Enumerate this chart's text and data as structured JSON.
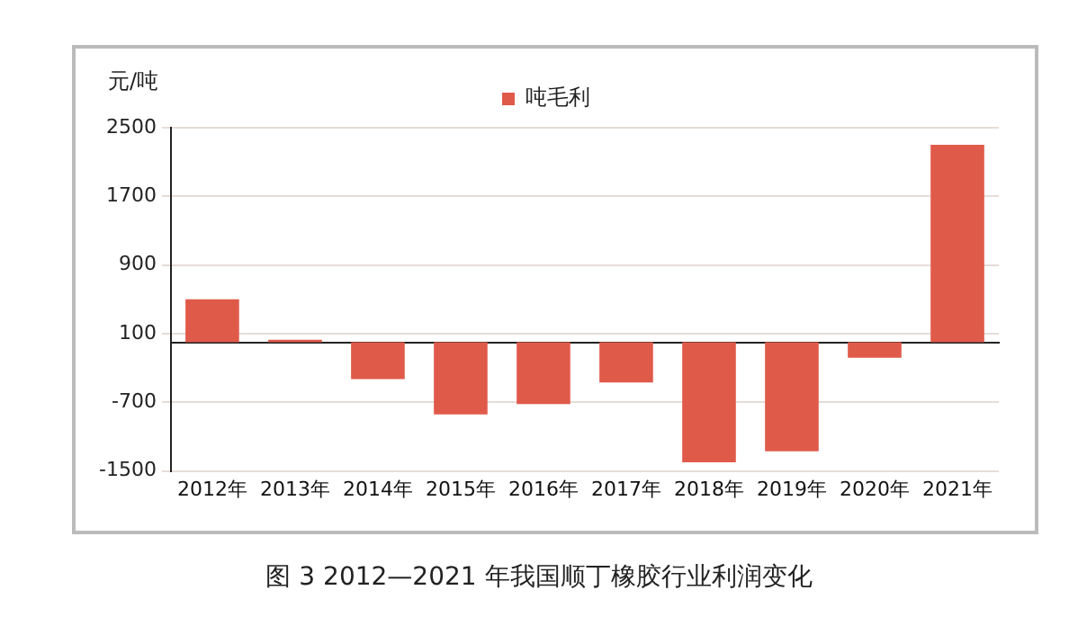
{
  "chart_data": {
    "type": "bar",
    "title": "图 3  2012—2021 年我国顺丁橡胶行业利润变化",
    "ylabel": "元/吨",
    "categories": [
      "2012年",
      "2013年",
      "2014年",
      "2015年",
      "2016年",
      "2017年",
      "2018年",
      "2019年",
      "2020年",
      "2021年"
    ],
    "series": [
      {
        "name": "吨毛利",
        "color": "#e05a4a",
        "values": [
          500,
          30,
          -430,
          -840,
          -720,
          -470,
          -1400,
          -1270,
          -180,
          2300
        ]
      }
    ],
    "ylim": [
      -1500,
      2500
    ],
    "yticks": [
      -1500,
      -700,
      100,
      900,
      1700,
      2500
    ],
    "grid": "y",
    "legend": "top"
  }
}
